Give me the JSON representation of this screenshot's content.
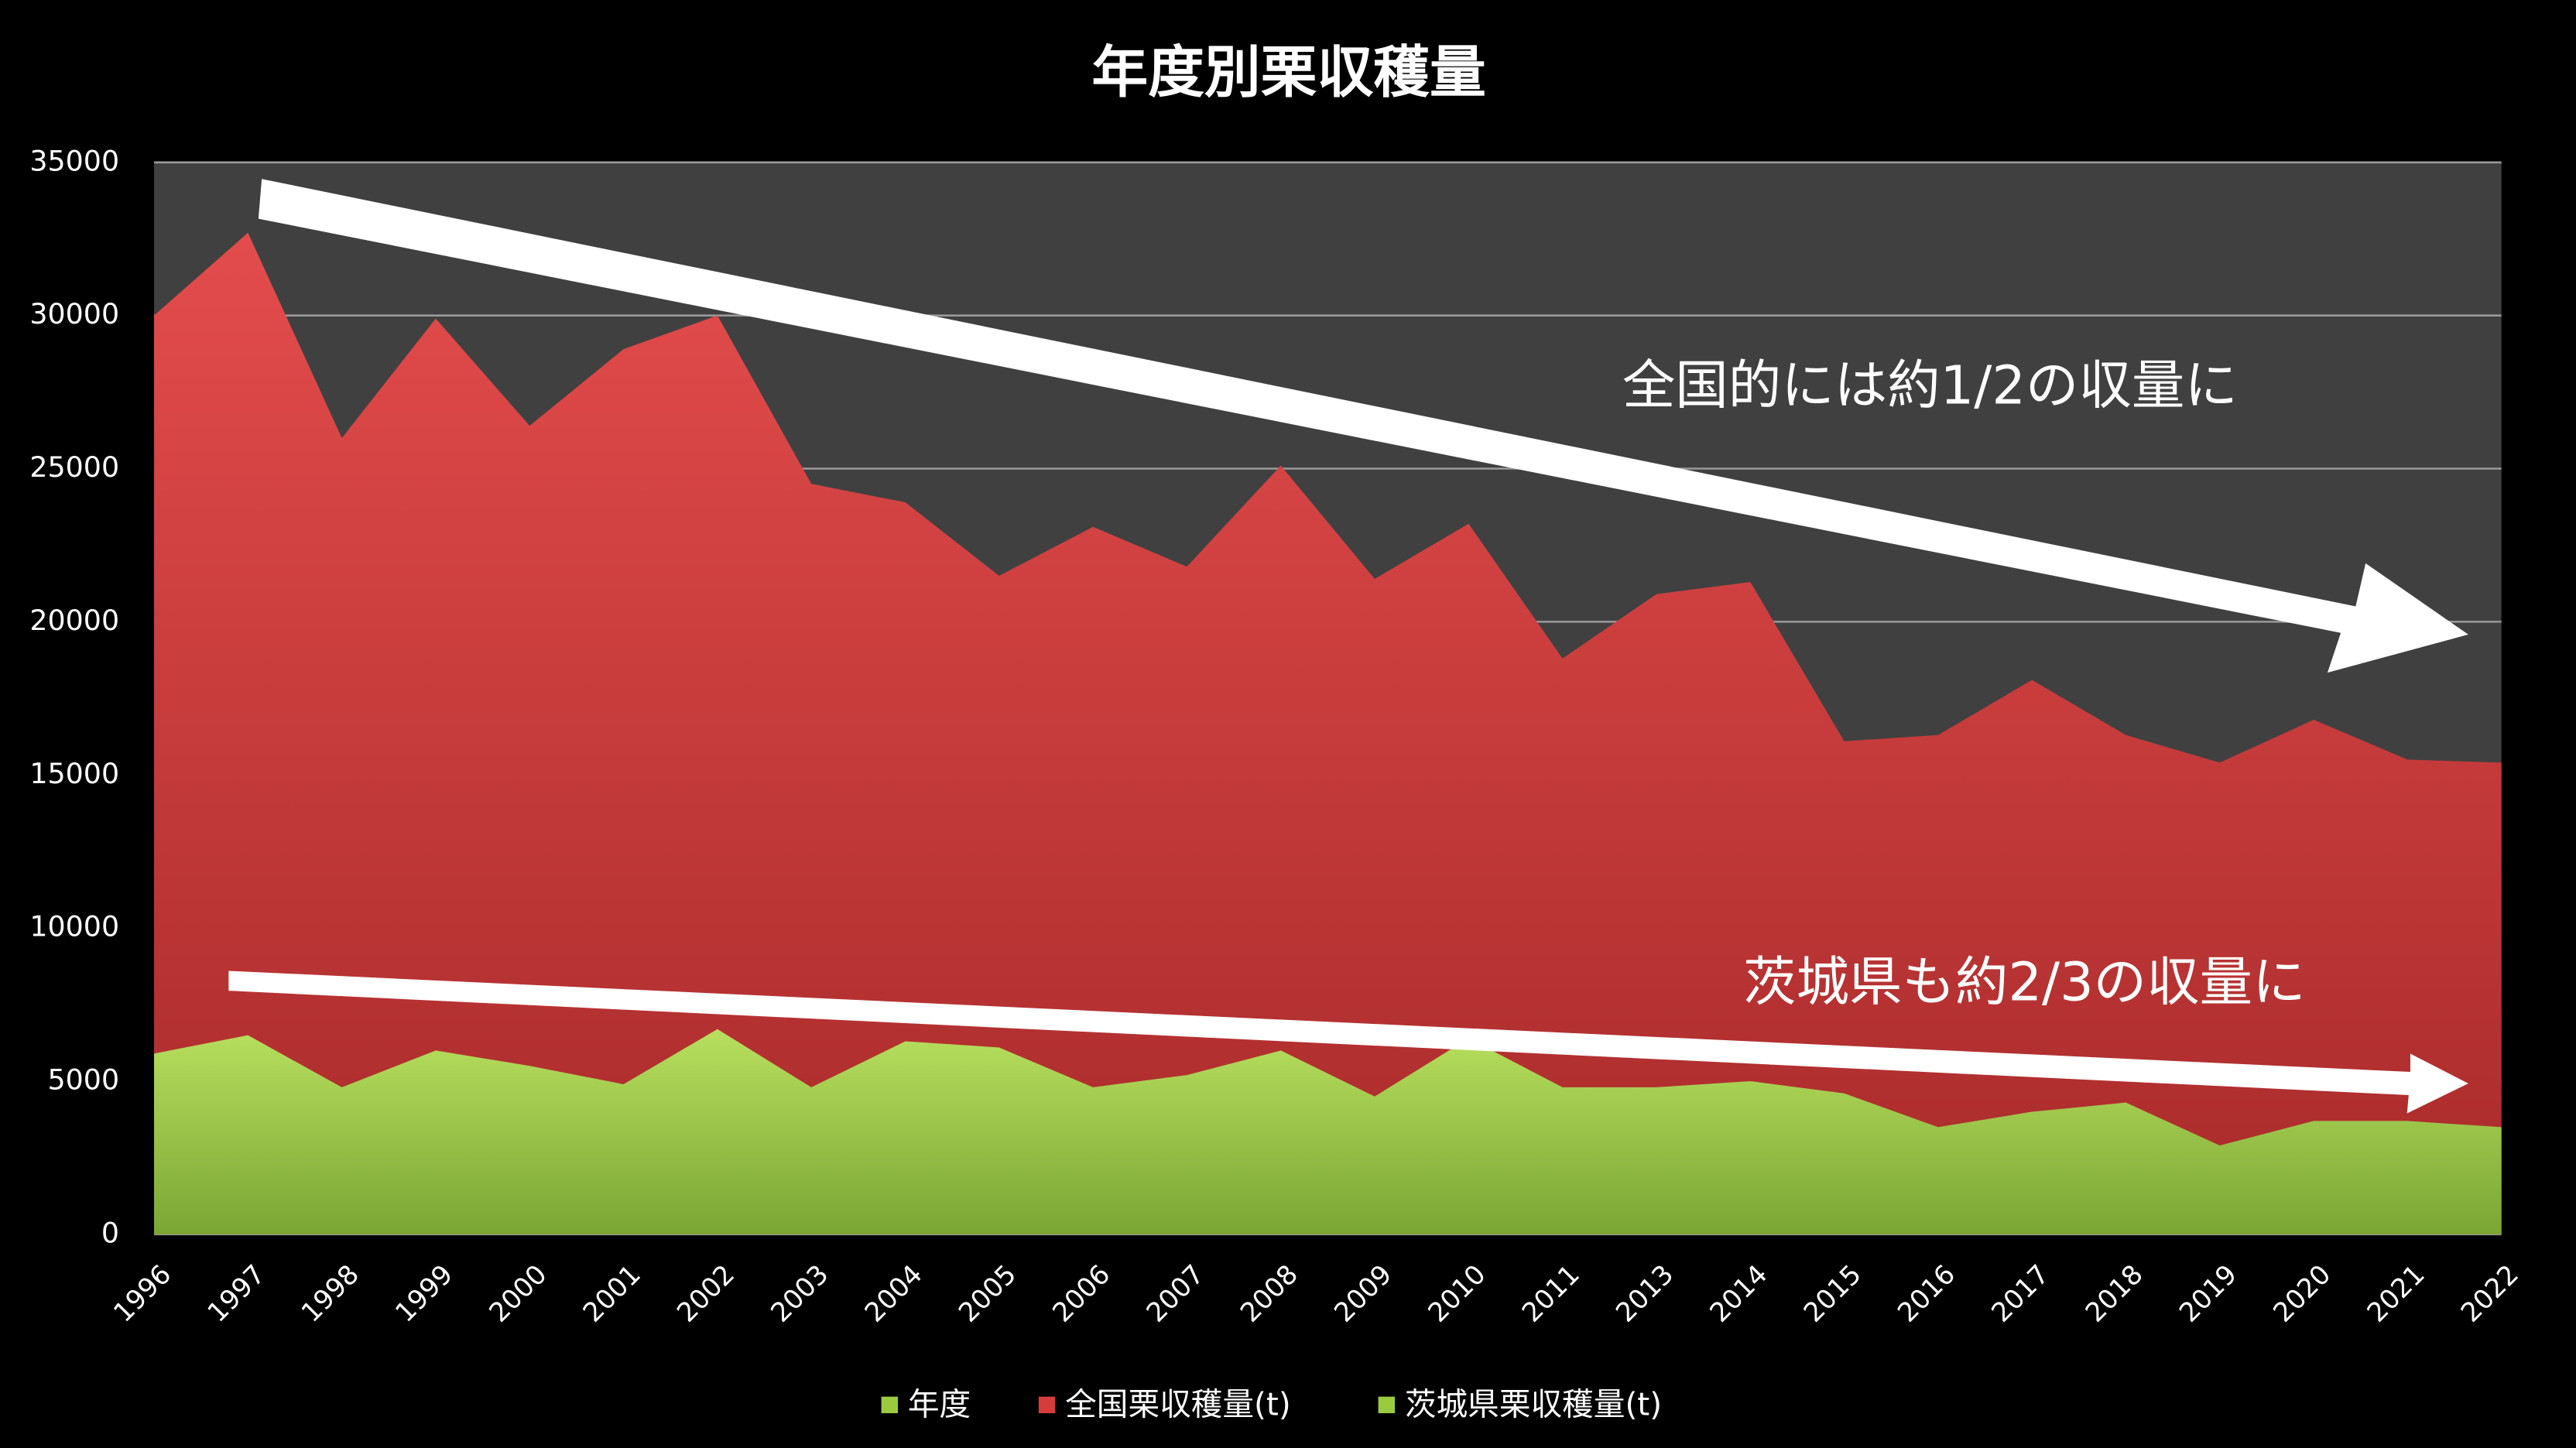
{
  "chart_data": {
    "type": "area",
    "title": "年度別栗収穫量",
    "categories": [
      "1996",
      "1997",
      "1998",
      "1999",
      "2000",
      "2001",
      "2002",
      "2003",
      "2004",
      "2005",
      "2006",
      "2007",
      "2008",
      "2009",
      "2010",
      "2011",
      "2013",
      "2014",
      "2015",
      "2016",
      "2017",
      "2018",
      "2019",
      "2020",
      "2021",
      "2022"
    ],
    "series": [
      {
        "name": "年度",
        "color": "#9acb3e"
      },
      {
        "name": "全国栗収穫量(t)",
        "color": "#d63c3c",
        "values": [
          30000,
          32700,
          26000,
          29900,
          26400,
          28900,
          30000,
          24500,
          23900,
          21500,
          23100,
          21800,
          25100,
          21400,
          23200,
          18800,
          20900,
          21300,
          16100,
          16300,
          18100,
          16300,
          15400,
          16800,
          15500,
          15400
        ]
      },
      {
        "name": "茨城県栗収穫量(t)",
        "color": "#9acb3e",
        "values": [
          5900,
          6500,
          4800,
          6000,
          5500,
          4900,
          6700,
          4800,
          6300,
          6100,
          4800,
          5200,
          6000,
          4500,
          6400,
          4800,
          4800,
          5000,
          4600,
          3500,
          4000,
          4300,
          2900,
          3700,
          3700,
          3500
        ]
      }
    ],
    "ylim": [
      0,
      35000
    ],
    "yticks": [
      0,
      5000,
      10000,
      15000,
      20000,
      25000,
      30000,
      35000
    ],
    "grid": true,
    "legend": "bottom",
    "annotations": [
      "全国的には約1/2の収量に",
      "茨城県も約2/3の収量に"
    ]
  }
}
